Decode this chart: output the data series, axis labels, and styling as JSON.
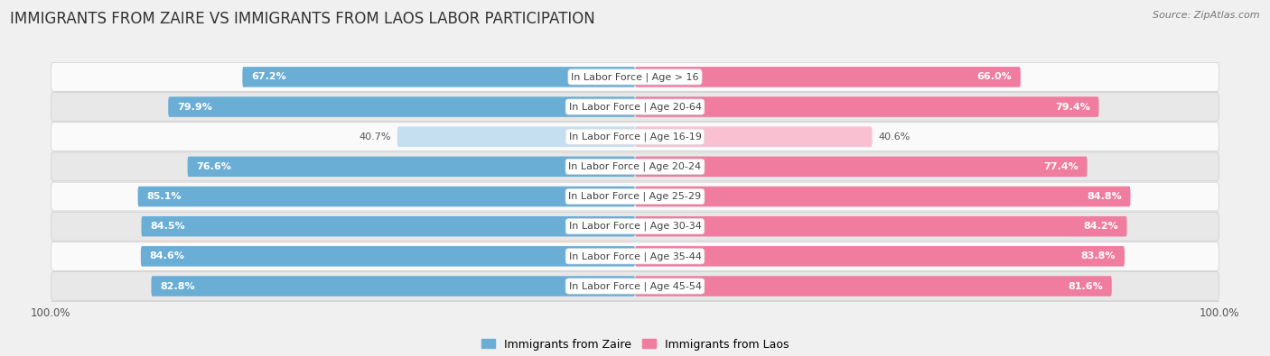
{
  "title": "IMMIGRANTS FROM ZAIRE VS IMMIGRANTS FROM LAOS LABOR PARTICIPATION",
  "source": "Source: ZipAtlas.com",
  "categories": [
    "In Labor Force | Age > 16",
    "In Labor Force | Age 20-64",
    "In Labor Force | Age 16-19",
    "In Labor Force | Age 20-24",
    "In Labor Force | Age 25-29",
    "In Labor Force | Age 30-34",
    "In Labor Force | Age 35-44",
    "In Labor Force | Age 45-54"
  ],
  "zaire_values": [
    67.2,
    79.9,
    40.7,
    76.6,
    85.1,
    84.5,
    84.6,
    82.8
  ],
  "laos_values": [
    66.0,
    79.4,
    40.6,
    77.4,
    84.8,
    84.2,
    83.8,
    81.6
  ],
  "zaire_color": "#6aaed6",
  "zaire_color_light": "#c5dff0",
  "laos_color": "#f07ca0",
  "laos_color_light": "#f9c0d2",
  "bar_height": 0.68,
  "max_value": 100.0,
  "bg_color": "#f0f0f0",
  "row_bg_light": "#fafafa",
  "row_bg_dark": "#e8e8e8",
  "title_fontsize": 12,
  "label_fontsize": 8,
  "value_fontsize": 8,
  "legend_fontsize": 9,
  "axis_label_fontsize": 8.5,
  "threshold_for_light": 60
}
